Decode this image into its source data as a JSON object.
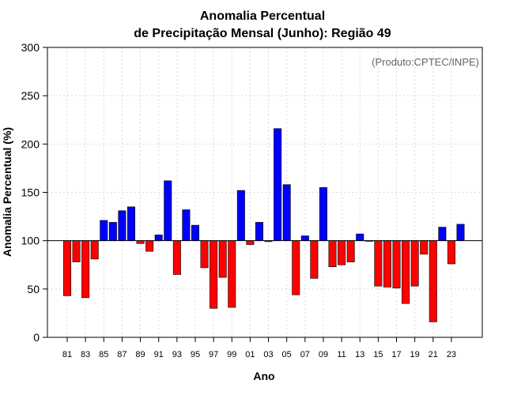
{
  "colors": {
    "positive": "#0000ff",
    "negative": "#ff0000",
    "grid": "#d9d9d9",
    "baseline": "#000000",
    "credit": "#666666"
  },
  "chart_data": {
    "type": "bar",
    "title_line1": "Anomalia Percentual",
    "title_line2": "de Precipitação Mensal (Junho): Região 49",
    "credit": "(Produto:CPTEC/INPE)",
    "xlabel": "Ano",
    "ylabel": "Anomalia Percentual (%)",
    "ylim": [
      0,
      300
    ],
    "baseline": 100,
    "grid": true,
    "yticks": [
      "0",
      "50",
      "100",
      "150",
      "200",
      "250",
      "300"
    ],
    "xtick_labels": [
      "81",
      "83",
      "85",
      "87",
      "89",
      "91",
      "93",
      "95",
      "97",
      "99",
      "01",
      "03",
      "05",
      "07",
      "09",
      "11",
      "13",
      "15",
      "17",
      "19",
      "21",
      "23"
    ],
    "categories": [
      "1981",
      "1982",
      "1983",
      "1984",
      "1985",
      "1986",
      "1987",
      "1988",
      "1989",
      "1990",
      "1991",
      "1992",
      "1993",
      "1994",
      "1995",
      "1996",
      "1997",
      "1998",
      "1999",
      "2000",
      "2001",
      "2002",
      "2003",
      "2004",
      "2005",
      "2006",
      "2007",
      "2008",
      "2009",
      "2010",
      "2011",
      "2012",
      "2013",
      "2014",
      "2015",
      "2016",
      "2017",
      "2018",
      "2019",
      "2020",
      "2021",
      "2022",
      "2023",
      "2024"
    ],
    "values": [
      43,
      78,
      41,
      81,
      121,
      119,
      131,
      135,
      97,
      89,
      106,
      162,
      65,
      132,
      116,
      72,
      30,
      62,
      31,
      152,
      96,
      119,
      99,
      216,
      158,
      44,
      105,
      61,
      155,
      73,
      75,
      78,
      107,
      100,
      53,
      52,
      51,
      35,
      53,
      86,
      16,
      114,
      76,
      117
    ]
  }
}
